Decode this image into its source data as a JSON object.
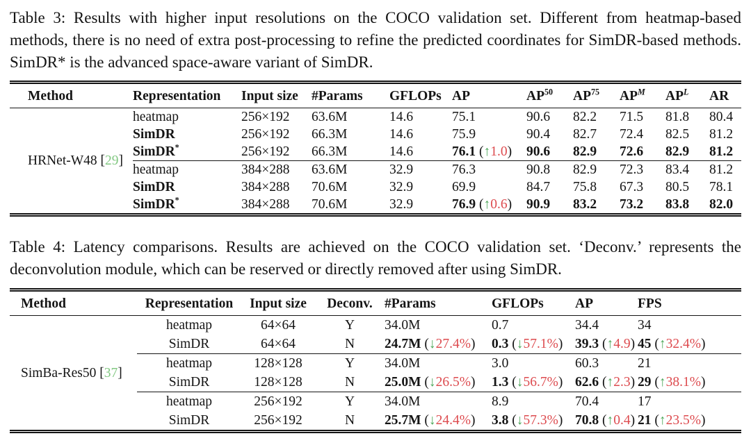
{
  "palette": {
    "green": "#4aa657",
    "red": "#dd4b4f",
    "cite": "#82c882"
  },
  "table3": {
    "caption": "Table 3: Results with higher input resolutions on the COCO validation set. Different from heatmap-based methods, there is no need of extra post-processing to refine the predicted coordinates for SimDR-based methods. SimDR* is the advanced space-aware variant of SimDR.",
    "headers": [
      [
        {
          "t": "Method"
        }
      ],
      [
        {
          "t": "Representation"
        }
      ],
      [
        {
          "t": "Input size"
        }
      ],
      [
        {
          "t": "#Params"
        }
      ],
      [
        {
          "t": "GFLOPs"
        }
      ],
      [
        {
          "t": "AP"
        }
      ],
      [
        {
          "t": "AP"
        },
        {
          "t": "50",
          "sup": 1
        }
      ],
      [
        {
          "t": "AP"
        },
        {
          "t": "75",
          "sup": 1
        }
      ],
      [
        {
          "t": "AP"
        },
        {
          "t": "M",
          "sup": 1,
          "i": 1
        }
      ],
      [
        {
          "t": "AP"
        },
        {
          "t": "L",
          "sup": 1,
          "i": 1
        }
      ],
      [
        {
          "t": "AR"
        }
      ]
    ],
    "method_label": [
      {
        "t": "HRNet-W48 ["
      },
      {
        "t": "29",
        "c": "cite"
      },
      {
        "t": "]"
      }
    ],
    "rows": [
      [
        [
          {
            "t": "heatmap"
          }
        ],
        [
          {
            "t": "256×192"
          }
        ],
        [
          {
            "t": "63.6M"
          }
        ],
        [
          {
            "t": "14.6"
          }
        ],
        [
          {
            "t": "75.1"
          }
        ],
        [
          {
            "t": "90.6"
          }
        ],
        [
          {
            "t": "82.2"
          }
        ],
        [
          {
            "t": "71.5"
          }
        ],
        [
          {
            "t": "81.8"
          }
        ],
        [
          {
            "t": "80.4"
          }
        ]
      ],
      [
        [
          {
            "t": "SimDR",
            "b": 1
          }
        ],
        [
          {
            "t": "256×192"
          }
        ],
        [
          {
            "t": "66.3M"
          }
        ],
        [
          {
            "t": "14.6"
          }
        ],
        [
          {
            "t": "75.9"
          }
        ],
        [
          {
            "t": "90.4"
          }
        ],
        [
          {
            "t": "82.7"
          }
        ],
        [
          {
            "t": "72.4"
          }
        ],
        [
          {
            "t": "82.5"
          }
        ],
        [
          {
            "t": "81.2"
          }
        ]
      ],
      [
        [
          {
            "t": "SimDR",
            "b": 1
          },
          {
            "t": "*",
            "b": 1,
            "sup": 1
          }
        ],
        [
          {
            "t": "256×192"
          }
        ],
        [
          {
            "t": "66.3M"
          }
        ],
        [
          {
            "t": "14.6"
          }
        ],
        [
          {
            "t": "76.1",
            "b": 1
          },
          {
            "t": " ("
          },
          {
            "t": "↑",
            "c": "green"
          },
          {
            "t": "1.0",
            "c": "red"
          },
          {
            "t": ")"
          }
        ],
        [
          {
            "t": "90.6",
            "b": 1
          }
        ],
        [
          {
            "t": "82.9",
            "b": 1
          }
        ],
        [
          {
            "t": "72.6",
            "b": 1
          }
        ],
        [
          {
            "t": "82.9",
            "b": 1
          }
        ],
        [
          {
            "t": "81.2",
            "b": 1
          }
        ]
      ],
      [
        [
          {
            "t": "heatmap"
          }
        ],
        [
          {
            "t": "384×288"
          }
        ],
        [
          {
            "t": "63.6M"
          }
        ],
        [
          {
            "t": "32.9"
          }
        ],
        [
          {
            "t": "76.3"
          }
        ],
        [
          {
            "t": "90.8"
          }
        ],
        [
          {
            "t": "82.9"
          }
        ],
        [
          {
            "t": "72.3"
          }
        ],
        [
          {
            "t": "83.4"
          }
        ],
        [
          {
            "t": "81.2"
          }
        ]
      ],
      [
        [
          {
            "t": "SimDR",
            "b": 1
          }
        ],
        [
          {
            "t": "384×288"
          }
        ],
        [
          {
            "t": "70.6M"
          }
        ],
        [
          {
            "t": "32.9"
          }
        ],
        [
          {
            "t": "69.9"
          }
        ],
        [
          {
            "t": "84.7"
          }
        ],
        [
          {
            "t": "75.8"
          }
        ],
        [
          {
            "t": "67.3"
          }
        ],
        [
          {
            "t": "80.5"
          }
        ],
        [
          {
            "t": "78.1"
          }
        ]
      ],
      [
        [
          {
            "t": "SimDR",
            "b": 1
          },
          {
            "t": "*",
            "b": 1,
            "sup": 1
          }
        ],
        [
          {
            "t": "384×288"
          }
        ],
        [
          {
            "t": "70.6M"
          }
        ],
        [
          {
            "t": "32.9"
          }
        ],
        [
          {
            "t": "76.9",
            "b": 1
          },
          {
            "t": " ("
          },
          {
            "t": "↑",
            "c": "green"
          },
          {
            "t": "0.6",
            "c": "red"
          },
          {
            "t": ")"
          }
        ],
        [
          {
            "t": "90.9",
            "b": 1
          }
        ],
        [
          {
            "t": "83.2",
            "b": 1
          }
        ],
        [
          {
            "t": "73.2",
            "b": 1
          }
        ],
        [
          {
            "t": "83.8",
            "b": 1
          }
        ],
        [
          {
            "t": "82.0",
            "b": 1
          }
        ]
      ]
    ],
    "group_breaks_after": [
      2
    ]
  },
  "table4": {
    "caption": "Table 4: Latency comparisons. Results are achieved on the COCO validation set. ‘Deconv.’ represents the deconvolution module, which can be reserved or directly removed after using SimDR.",
    "headers": [
      [
        {
          "t": "Method"
        }
      ],
      [
        {
          "t": "Representation"
        }
      ],
      [
        {
          "t": "Input size"
        }
      ],
      [
        {
          "t": "Deconv."
        }
      ],
      [
        {
          "t": "#Params"
        }
      ],
      [
        {
          "t": "GFLOPs"
        }
      ],
      [
        {
          "t": "AP"
        }
      ],
      [
        {
          "t": "FPS"
        }
      ]
    ],
    "method_label": [
      {
        "t": "SimBa-Res50 ["
      },
      {
        "t": "37",
        "c": "cite"
      },
      {
        "t": "]"
      }
    ],
    "rows": [
      [
        [
          {
            "t": "heatmap"
          }
        ],
        [
          {
            "t": "64×64"
          }
        ],
        [
          {
            "t": "Y"
          }
        ],
        [
          {
            "t": "34.0M"
          }
        ],
        [
          {
            "t": "0.7"
          }
        ],
        [
          {
            "t": "34.4"
          }
        ],
        [
          {
            "t": "34"
          }
        ]
      ],
      [
        [
          {
            "t": "SimDR"
          }
        ],
        [
          {
            "t": "64×64"
          }
        ],
        [
          {
            "t": "N"
          }
        ],
        [
          {
            "t": "24.7M",
            "b": 1
          },
          {
            "t": " ("
          },
          {
            "t": "↓",
            "c": "green"
          },
          {
            "t": "27.4%",
            "c": "red"
          },
          {
            "t": ")"
          }
        ],
        [
          {
            "t": "0.3",
            "b": 1
          },
          {
            "t": " ("
          },
          {
            "t": "↓",
            "c": "green"
          },
          {
            "t": "57.1%",
            "c": "red"
          },
          {
            "t": ")"
          }
        ],
        [
          {
            "t": "39.3",
            "b": 1
          },
          {
            "t": " ("
          },
          {
            "t": "↑",
            "c": "green"
          },
          {
            "t": "4.9",
            "c": "red"
          },
          {
            "t": ")"
          }
        ],
        [
          {
            "t": "45",
            "b": 1
          },
          {
            "t": " ("
          },
          {
            "t": "↑",
            "c": "green"
          },
          {
            "t": "32.4%",
            "c": "red"
          },
          {
            "t": ")"
          }
        ]
      ],
      [
        [
          {
            "t": "heatmap"
          }
        ],
        [
          {
            "t": "128×128"
          }
        ],
        [
          {
            "t": "Y"
          }
        ],
        [
          {
            "t": "34.0M"
          }
        ],
        [
          {
            "t": "3.0"
          }
        ],
        [
          {
            "t": "60.3"
          }
        ],
        [
          {
            "t": "21"
          }
        ]
      ],
      [
        [
          {
            "t": "SimDR"
          }
        ],
        [
          {
            "t": "128×128"
          }
        ],
        [
          {
            "t": "N"
          }
        ],
        [
          {
            "t": "25.0M",
            "b": 1
          },
          {
            "t": " ("
          },
          {
            "t": "↓",
            "c": "green"
          },
          {
            "t": "26.5%",
            "c": "red"
          },
          {
            "t": ")"
          }
        ],
        [
          {
            "t": "1.3",
            "b": 1
          },
          {
            "t": " ("
          },
          {
            "t": "↓",
            "c": "green"
          },
          {
            "t": "56.7%",
            "c": "red"
          },
          {
            "t": ")"
          }
        ],
        [
          {
            "t": "62.6",
            "b": 1
          },
          {
            "t": " ("
          },
          {
            "t": "↑",
            "c": "green"
          },
          {
            "t": "2.3",
            "c": "red"
          },
          {
            "t": ")"
          }
        ],
        [
          {
            "t": "29",
            "b": 1
          },
          {
            "t": " ("
          },
          {
            "t": "↑",
            "c": "green"
          },
          {
            "t": "38.1%",
            "c": "red"
          },
          {
            "t": ")"
          }
        ]
      ],
      [
        [
          {
            "t": "heatmap"
          }
        ],
        [
          {
            "t": "256×192"
          }
        ],
        [
          {
            "t": "Y"
          }
        ],
        [
          {
            "t": "34.0M"
          }
        ],
        [
          {
            "t": "8.9"
          }
        ],
        [
          {
            "t": "70.4"
          }
        ],
        [
          {
            "t": "17"
          }
        ]
      ],
      [
        [
          {
            "t": "SimDR"
          }
        ],
        [
          {
            "t": "256×192"
          }
        ],
        [
          {
            "t": "N"
          }
        ],
        [
          {
            "t": "25.7M",
            "b": 1
          },
          {
            "t": " ("
          },
          {
            "t": "↓",
            "c": "green"
          },
          {
            "t": "24.4%",
            "c": "red"
          },
          {
            "t": ")"
          }
        ],
        [
          {
            "t": "3.8",
            "b": 1
          },
          {
            "t": " ("
          },
          {
            "t": "↓",
            "c": "green"
          },
          {
            "t": "57.3%",
            "c": "red"
          },
          {
            "t": ")"
          }
        ],
        [
          {
            "t": "70.8",
            "b": 1
          },
          {
            "t": " ("
          },
          {
            "t": "↑",
            "c": "green"
          },
          {
            "t": "0.4",
            "c": "red"
          },
          {
            "t": ")"
          }
        ],
        [
          {
            "t": "21",
            "b": 1
          },
          {
            "t": " ("
          },
          {
            "t": "↑",
            "c": "green"
          },
          {
            "t": "23.5%",
            "c": "red"
          },
          {
            "t": ")"
          }
        ]
      ]
    ],
    "group_breaks_after": [
      1,
      3
    ]
  }
}
